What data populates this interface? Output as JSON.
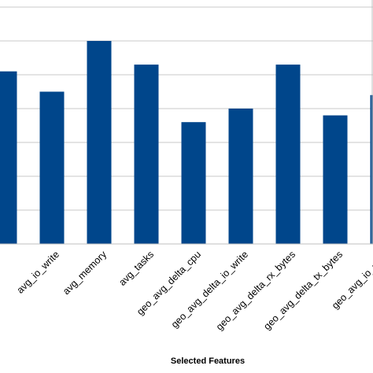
{
  "chart_data": {
    "type": "bar",
    "xlabel": "Selected Features",
    "ylabel": "",
    "ylim": [
      0,
      6
    ],
    "grid": true,
    "categories": [
      "",
      "avg_io_write",
      "avg_memory",
      "avg_tasks",
      "geo_avg_delta_cpu",
      "geo_avg_delta_io_write",
      "geo_avg_delta_rx_bytes",
      "geo_avg_delta_tx_bytes",
      "geo_avg_io_write"
    ],
    "values": [
      5.1,
      4.5,
      6.0,
      5.3,
      3.6,
      4.0,
      5.3,
      3.8,
      4.4
    ],
    "colors": {
      "bar": "#00468b",
      "grid": "#c8c8c8",
      "axis": "#bfbfbf"
    }
  }
}
